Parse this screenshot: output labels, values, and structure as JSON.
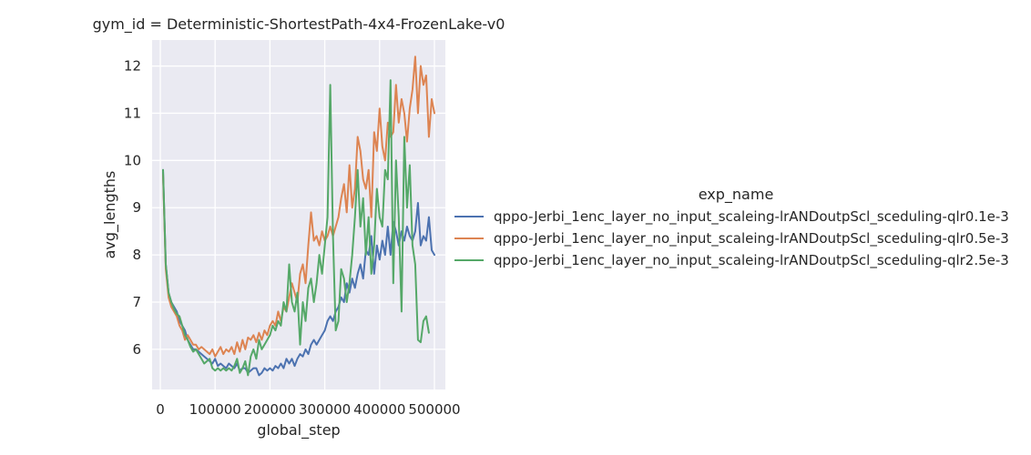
{
  "chart_data": {
    "type": "line",
    "title": "gym_id = Deterministic-ShortestPath-4x4-FrozenLake-v0",
    "xlabel": "global_step",
    "ylabel": "avg_lengths",
    "xlim": [
      -15000,
      520000
    ],
    "ylim": [
      5.15,
      12.55
    ],
    "xticks": [
      0,
      100000,
      200000,
      300000,
      400000,
      500000
    ],
    "xtick_labels": [
      "0",
      "100000",
      "200000",
      "300000",
      "400000",
      "500000"
    ],
    "yticks": [
      6,
      7,
      8,
      9,
      10,
      11,
      12
    ],
    "ytick_labels": [
      "6",
      "7",
      "8",
      "9",
      "10",
      "11",
      "12"
    ],
    "grid": true,
    "background": "#eaeaf2",
    "legend": {
      "title": "exp_name",
      "placement": "right, outside plot"
    },
    "series": [
      {
        "name": "qppo-Jerbi_1enc_layer_no_input_scaleing-lrANDoutpScl_sceduling-qlr0.1e-3",
        "color": "#4c72b0",
        "points": [
          [
            5000,
            9.8
          ],
          [
            10000,
            7.8
          ],
          [
            15000,
            7.2
          ],
          [
            20000,
            7.0
          ],
          [
            25000,
            6.9
          ],
          [
            30000,
            6.8
          ],
          [
            35000,
            6.6
          ],
          [
            40000,
            6.5
          ],
          [
            45000,
            6.4
          ],
          [
            50000,
            6.2
          ],
          [
            55000,
            6.1
          ],
          [
            60000,
            6.0
          ],
          [
            65000,
            6.0
          ],
          [
            70000,
            5.95
          ],
          [
            75000,
            5.9
          ],
          [
            80000,
            5.85
          ],
          [
            85000,
            5.8
          ],
          [
            90000,
            5.75
          ],
          [
            95000,
            5.7
          ],
          [
            100000,
            5.8
          ],
          [
            105000,
            5.65
          ],
          [
            110000,
            5.7
          ],
          [
            115000,
            5.65
          ],
          [
            120000,
            5.6
          ],
          [
            125000,
            5.7
          ],
          [
            130000,
            5.65
          ],
          [
            135000,
            5.6
          ],
          [
            140000,
            5.7
          ],
          [
            145000,
            5.55
          ],
          [
            150000,
            5.6
          ],
          [
            155000,
            5.6
          ],
          [
            160000,
            5.5
          ],
          [
            165000,
            5.55
          ],
          [
            170000,
            5.6
          ],
          [
            175000,
            5.6
          ],
          [
            180000,
            5.45
          ],
          [
            185000,
            5.5
          ],
          [
            190000,
            5.6
          ],
          [
            195000,
            5.55
          ],
          [
            200000,
            5.6
          ],
          [
            205000,
            5.55
          ],
          [
            210000,
            5.65
          ],
          [
            215000,
            5.6
          ],
          [
            220000,
            5.7
          ],
          [
            225000,
            5.6
          ],
          [
            230000,
            5.8
          ],
          [
            235000,
            5.7
          ],
          [
            240000,
            5.8
          ],
          [
            245000,
            5.65
          ],
          [
            250000,
            5.8
          ],
          [
            255000,
            5.9
          ],
          [
            260000,
            5.85
          ],
          [
            265000,
            6.0
          ],
          [
            270000,
            5.9
          ],
          [
            275000,
            6.1
          ],
          [
            280000,
            6.2
          ],
          [
            285000,
            6.1
          ],
          [
            290000,
            6.2
          ],
          [
            295000,
            6.3
          ],
          [
            300000,
            6.4
          ],
          [
            305000,
            6.6
          ],
          [
            310000,
            6.7
          ],
          [
            315000,
            6.6
          ],
          [
            320000,
            6.8
          ],
          [
            325000,
            6.9
          ],
          [
            330000,
            7.1
          ],
          [
            335000,
            7.0
          ],
          [
            340000,
            7.4
          ],
          [
            345000,
            7.2
          ],
          [
            350000,
            7.5
          ],
          [
            355000,
            7.3
          ],
          [
            360000,
            7.6
          ],
          [
            365000,
            7.8
          ],
          [
            370000,
            7.5
          ],
          [
            375000,
            8.1
          ],
          [
            380000,
            8.0
          ],
          [
            385000,
            8.4
          ],
          [
            390000,
            7.6
          ],
          [
            395000,
            8.2
          ],
          [
            400000,
            7.9
          ],
          [
            405000,
            8.3
          ],
          [
            410000,
            8.0
          ],
          [
            415000,
            8.6
          ],
          [
            420000,
            8.0
          ],
          [
            425000,
            8.7
          ],
          [
            430000,
            8.5
          ],
          [
            435000,
            8.2
          ],
          [
            440000,
            8.5
          ],
          [
            445000,
            8.3
          ],
          [
            450000,
            8.6
          ],
          [
            455000,
            8.4
          ],
          [
            460000,
            8.3
          ],
          [
            465000,
            8.5
          ],
          [
            470000,
            9.1
          ],
          [
            475000,
            8.2
          ],
          [
            480000,
            8.4
          ],
          [
            485000,
            8.3
          ],
          [
            490000,
            8.8
          ],
          [
            495000,
            8.1
          ],
          [
            500000,
            8.0
          ]
        ]
      },
      {
        "name": "qppo-Jerbi_1enc_layer_no_input_scaleing-lrANDoutpScl_sceduling-qlr0.5e-3",
        "color": "#dd8452",
        "points": [
          [
            5000,
            9.7
          ],
          [
            10000,
            7.7
          ],
          [
            15000,
            7.1
          ],
          [
            20000,
            6.9
          ],
          [
            25000,
            6.8
          ],
          [
            30000,
            6.7
          ],
          [
            35000,
            6.5
          ],
          [
            40000,
            6.4
          ],
          [
            45000,
            6.2
          ],
          [
            50000,
            6.3
          ],
          [
            55000,
            6.2
          ],
          [
            60000,
            6.1
          ],
          [
            65000,
            6.1
          ],
          [
            70000,
            6.0
          ],
          [
            75000,
            6.05
          ],
          [
            80000,
            6.0
          ],
          [
            85000,
            5.95
          ],
          [
            90000,
            5.9
          ],
          [
            95000,
            6.0
          ],
          [
            100000,
            5.85
          ],
          [
            105000,
            5.95
          ],
          [
            110000,
            6.05
          ],
          [
            115000,
            5.9
          ],
          [
            120000,
            6.0
          ],
          [
            125000,
            5.95
          ],
          [
            130000,
            6.05
          ],
          [
            135000,
            5.9
          ],
          [
            140000,
            6.15
          ],
          [
            145000,
            5.95
          ],
          [
            150000,
            6.2
          ],
          [
            155000,
            6.0
          ],
          [
            160000,
            6.25
          ],
          [
            165000,
            6.2
          ],
          [
            170000,
            6.3
          ],
          [
            175000,
            6.15
          ],
          [
            180000,
            6.35
          ],
          [
            185000,
            6.2
          ],
          [
            190000,
            6.4
          ],
          [
            195000,
            6.3
          ],
          [
            200000,
            6.5
          ],
          [
            205000,
            6.6
          ],
          [
            210000,
            6.5
          ],
          [
            215000,
            6.8
          ],
          [
            220000,
            6.6
          ],
          [
            225000,
            6.9
          ],
          [
            230000,
            6.8
          ],
          [
            235000,
            7.1
          ],
          [
            240000,
            7.4
          ],
          [
            245000,
            7.2
          ],
          [
            250000,
            7.0
          ],
          [
            255000,
            7.6
          ],
          [
            260000,
            7.8
          ],
          [
            265000,
            7.4
          ],
          [
            270000,
            8.2
          ],
          [
            275000,
            8.9
          ],
          [
            280000,
            8.3
          ],
          [
            285000,
            8.4
          ],
          [
            290000,
            8.2
          ],
          [
            295000,
            8.5
          ],
          [
            300000,
            8.3
          ],
          [
            305000,
            8.4
          ],
          [
            310000,
            8.6
          ],
          [
            315000,
            8.4
          ],
          [
            320000,
            8.6
          ],
          [
            325000,
            8.8
          ],
          [
            330000,
            9.2
          ],
          [
            335000,
            9.5
          ],
          [
            340000,
            8.9
          ],
          [
            345000,
            9.9
          ],
          [
            350000,
            9.0
          ],
          [
            355000,
            9.4
          ],
          [
            360000,
            10.5
          ],
          [
            365000,
            10.2
          ],
          [
            370000,
            9.6
          ],
          [
            375000,
            9.4
          ],
          [
            380000,
            9.8
          ],
          [
            385000,
            8.8
          ],
          [
            390000,
            10.6
          ],
          [
            395000,
            10.2
          ],
          [
            400000,
            11.1
          ],
          [
            405000,
            10.3
          ],
          [
            410000,
            10.0
          ],
          [
            415000,
            10.8
          ],
          [
            420000,
            10.5
          ],
          [
            425000,
            10.6
          ],
          [
            430000,
            11.6
          ],
          [
            435000,
            10.8
          ],
          [
            440000,
            11.3
          ],
          [
            445000,
            11.0
          ],
          [
            450000,
            10.4
          ],
          [
            455000,
            11.1
          ],
          [
            460000,
            11.5
          ],
          [
            465000,
            12.2
          ],
          [
            470000,
            11.0
          ],
          [
            475000,
            12.0
          ],
          [
            480000,
            11.6
          ],
          [
            485000,
            11.8
          ],
          [
            490000,
            10.5
          ],
          [
            495000,
            11.3
          ],
          [
            500000,
            11.0
          ]
        ]
      },
      {
        "name": "qppo-Jerbi_1enc_layer_no_input_scaleing-lrANDoutpScl_sceduling-qlr2.5e-3",
        "color": "#55a868",
        "points": [
          [
            5000,
            9.8
          ],
          [
            10000,
            7.8
          ],
          [
            15000,
            7.2
          ],
          [
            20000,
            7.0
          ],
          [
            25000,
            6.85
          ],
          [
            30000,
            6.75
          ],
          [
            35000,
            6.7
          ],
          [
            40000,
            6.5
          ],
          [
            45000,
            6.3
          ],
          [
            50000,
            6.2
          ],
          [
            55000,
            6.05
          ],
          [
            60000,
            5.95
          ],
          [
            65000,
            6.0
          ],
          [
            70000,
            5.9
          ],
          [
            75000,
            5.8
          ],
          [
            80000,
            5.7
          ],
          [
            85000,
            5.75
          ],
          [
            90000,
            5.8
          ],
          [
            95000,
            5.6
          ],
          [
            100000,
            5.55
          ],
          [
            105000,
            5.6
          ],
          [
            110000,
            5.55
          ],
          [
            115000,
            5.6
          ],
          [
            120000,
            5.55
          ],
          [
            125000,
            5.6
          ],
          [
            130000,
            5.55
          ],
          [
            135000,
            5.65
          ],
          [
            140000,
            5.8
          ],
          [
            145000,
            5.5
          ],
          [
            150000,
            5.6
          ],
          [
            155000,
            5.75
          ],
          [
            160000,
            5.45
          ],
          [
            165000,
            5.85
          ],
          [
            170000,
            6.0
          ],
          [
            175000,
            5.8
          ],
          [
            180000,
            6.2
          ],
          [
            185000,
            6.0
          ],
          [
            190000,
            6.1
          ],
          [
            195000,
            6.2
          ],
          [
            200000,
            6.3
          ],
          [
            205000,
            6.5
          ],
          [
            210000,
            6.4
          ],
          [
            215000,
            6.6
          ],
          [
            220000,
            6.5
          ],
          [
            225000,
            7.0
          ],
          [
            230000,
            6.8
          ],
          [
            235000,
            7.8
          ],
          [
            240000,
            7.0
          ],
          [
            245000,
            6.8
          ],
          [
            250000,
            7.2
          ],
          [
            255000,
            6.1
          ],
          [
            260000,
            7.0
          ],
          [
            265000,
            6.6
          ],
          [
            270000,
            7.3
          ],
          [
            275000,
            7.5
          ],
          [
            280000,
            7.0
          ],
          [
            285000,
            7.4
          ],
          [
            290000,
            8.0
          ],
          [
            295000,
            7.6
          ],
          [
            300000,
            8.2
          ],
          [
            305000,
            8.8
          ],
          [
            310000,
            11.6
          ],
          [
            315000,
            8.4
          ],
          [
            320000,
            6.4
          ],
          [
            325000,
            6.6
          ],
          [
            330000,
            7.7
          ],
          [
            335000,
            7.5
          ],
          [
            340000,
            7.0
          ],
          [
            345000,
            7.4
          ],
          [
            350000,
            8.0
          ],
          [
            355000,
            8.8
          ],
          [
            360000,
            9.8
          ],
          [
            365000,
            8.6
          ],
          [
            370000,
            9.2
          ],
          [
            375000,
            8.0
          ],
          [
            380000,
            8.8
          ],
          [
            385000,
            7.6
          ],
          [
            390000,
            8.2
          ],
          [
            395000,
            9.4
          ],
          [
            400000,
            8.8
          ],
          [
            405000,
            8.6
          ],
          [
            410000,
            9.8
          ],
          [
            415000,
            9.6
          ],
          [
            420000,
            11.7
          ],
          [
            425000,
            7.4
          ],
          [
            430000,
            10.0
          ],
          [
            435000,
            8.8
          ],
          [
            440000,
            6.8
          ],
          [
            445000,
            10.5
          ],
          [
            450000,
            9.0
          ],
          [
            455000,
            9.9
          ],
          [
            460000,
            8.2
          ],
          [
            465000,
            7.8
          ],
          [
            470000,
            6.2
          ],
          [
            475000,
            6.15
          ],
          [
            480000,
            6.6
          ],
          [
            485000,
            6.7
          ],
          [
            490000,
            6.35
          ]
        ]
      }
    ]
  }
}
